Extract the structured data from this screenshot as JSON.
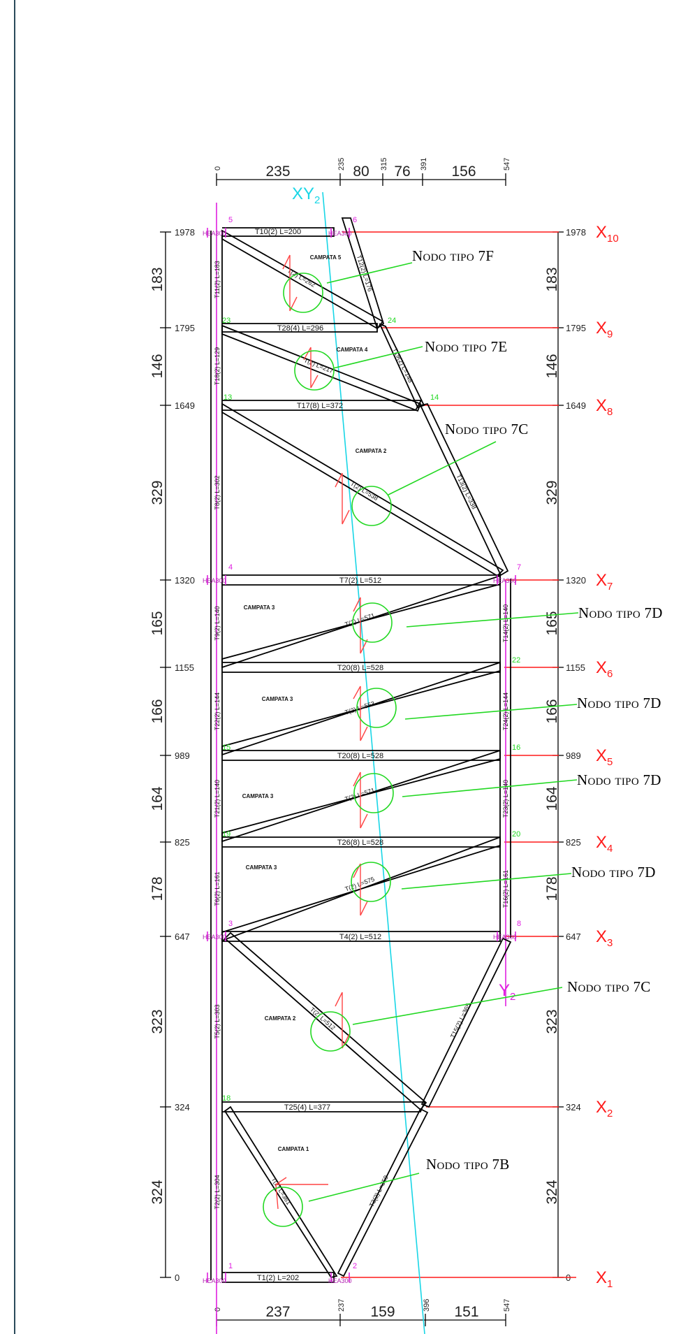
{
  "top_dims": {
    "spans": [
      "235",
      "80",
      "76",
      "156"
    ],
    "coords": [
      "0",
      "235",
      "315",
      "391",
      "547"
    ]
  },
  "bottom_dims": {
    "spans": [
      "237",
      "159",
      "151"
    ],
    "coords": [
      "0",
      "237",
      "396",
      "547"
    ]
  },
  "levels": [
    {
      "y": "1978",
      "axis": "X",
      "sub": "10"
    },
    {
      "y": "1795",
      "axis": "X",
      "sub": "9"
    },
    {
      "y": "1649",
      "axis": "X",
      "sub": "8"
    },
    {
      "y": "1320",
      "axis": "X",
      "sub": "7"
    },
    {
      "y": "1155",
      "axis": "X",
      "sub": "6"
    },
    {
      "y": "989",
      "axis": "X",
      "sub": "5"
    },
    {
      "y": "825",
      "axis": "X",
      "sub": "4"
    },
    {
      "y": "647",
      "axis": "X",
      "sub": "3"
    },
    {
      "y": "324",
      "axis": "X",
      "sub": "2"
    },
    {
      "y": "0",
      "axis": "X",
      "sub": "1"
    }
  ],
  "heights": [
    "183",
    "146",
    "329",
    "165",
    "166",
    "164",
    "178",
    "323",
    "324"
  ],
  "axes": {
    "xy_top": {
      "main": "XY",
      "sub": "2"
    },
    "y_right": {
      "main": "Y",
      "sub": "2"
    }
  },
  "members": {
    "t10": "T10(2) L=200",
    "t28": "T28(4) L=296",
    "t17": "T17(8) L=372",
    "t7": "T7(2) L=512",
    "t20a": "T20(8) L=528",
    "t20b": "T20(8) L=528",
    "t26": "T26(8) L=528",
    "t4": "T4(2) L=512",
    "t25": "T25(4) L=377",
    "t1": "T1(2) L=202",
    "t11": "T11(2) L=183",
    "t18a": "T18(2) L=129",
    "t8": "T8(2) L=302",
    "t9": "T9(2) L=140",
    "t22": "T22(2) L=144",
    "t21": "T21(2) L=140",
    "t6": "T6(2) L=161",
    "t5": "T5(2) L=303",
    "t2": "T2(2) L=304",
    "t14": "T14(2) L=140",
    "t24": "T24(2) L=144",
    "t23": "T23(2) L=140",
    "t16": "T16(2) L=161",
    "t12": "T12(2) L=176",
    "t19": "T19(2) L=148",
    "t13": "T13(2) L=338",
    "t15": "T15(2) L=365",
    "t3": "T3(2) L=359",
    "d1": "T(2) L=262",
    "d2": "T(2) L=217",
    "d3": "T(2) L=538",
    "d4": "T(2) L=571",
    "d5": "T(2) L=553",
    "d6": "T(2) L=571",
    "d7": "T(2) L=575",
    "d8": "T(2) L=512",
    "d9": "T(2) L=361"
  },
  "campate": {
    "c5": "CAMPATA 5",
    "c4": "CAMPATA 4",
    "c2a": "CAMPATA 2",
    "c3a": "CAMPATA 3",
    "c3b": "CAMPATA 3",
    "c3c": "CAMPATA 3",
    "c3d": "CAMPATA 3",
    "c2b": "CAMPATA 2",
    "c1": "CAMPATA 1"
  },
  "node_numbers": {
    "n5": "5",
    "n6": "6",
    "n23": "23",
    "n24": "24",
    "n13": "13",
    "n14": "14",
    "n4": "4",
    "n7": "7",
    "n22": "22",
    "n15": "15",
    "n16": "16",
    "n19": "19",
    "n20": "20",
    "n3": "3",
    "n8": "8",
    "n18": "18",
    "n1": "1",
    "n2": "2"
  },
  "supports": {
    "s5": "HEA300",
    "s6": "HEA300",
    "s4": "HEA300",
    "s7": "HEA300",
    "s3": "HEA300",
    "s8": "HEA300",
    "s1": "HEA300",
    "s2": "HEA300"
  },
  "node_types": [
    {
      "label": "Nodo tipo 7F"
    },
    {
      "label": "Nodo tipo 7E"
    },
    {
      "label": "Nodo tipo 7C"
    },
    {
      "label": "Nodo tipo 7D"
    },
    {
      "label": "Nodo tipo 7D"
    },
    {
      "label": "Nodo tipo 7D"
    },
    {
      "label": "Nodo tipo 7D"
    },
    {
      "label": "Nodo tipo 7C"
    },
    {
      "label": "Nodo tipo 7B"
    }
  ],
  "colors": {
    "axis_red": "#ff1a1a",
    "magenta": "#e020e0",
    "cyan": "#19d6e6",
    "green": "#22d822",
    "line": "#000000"
  }
}
